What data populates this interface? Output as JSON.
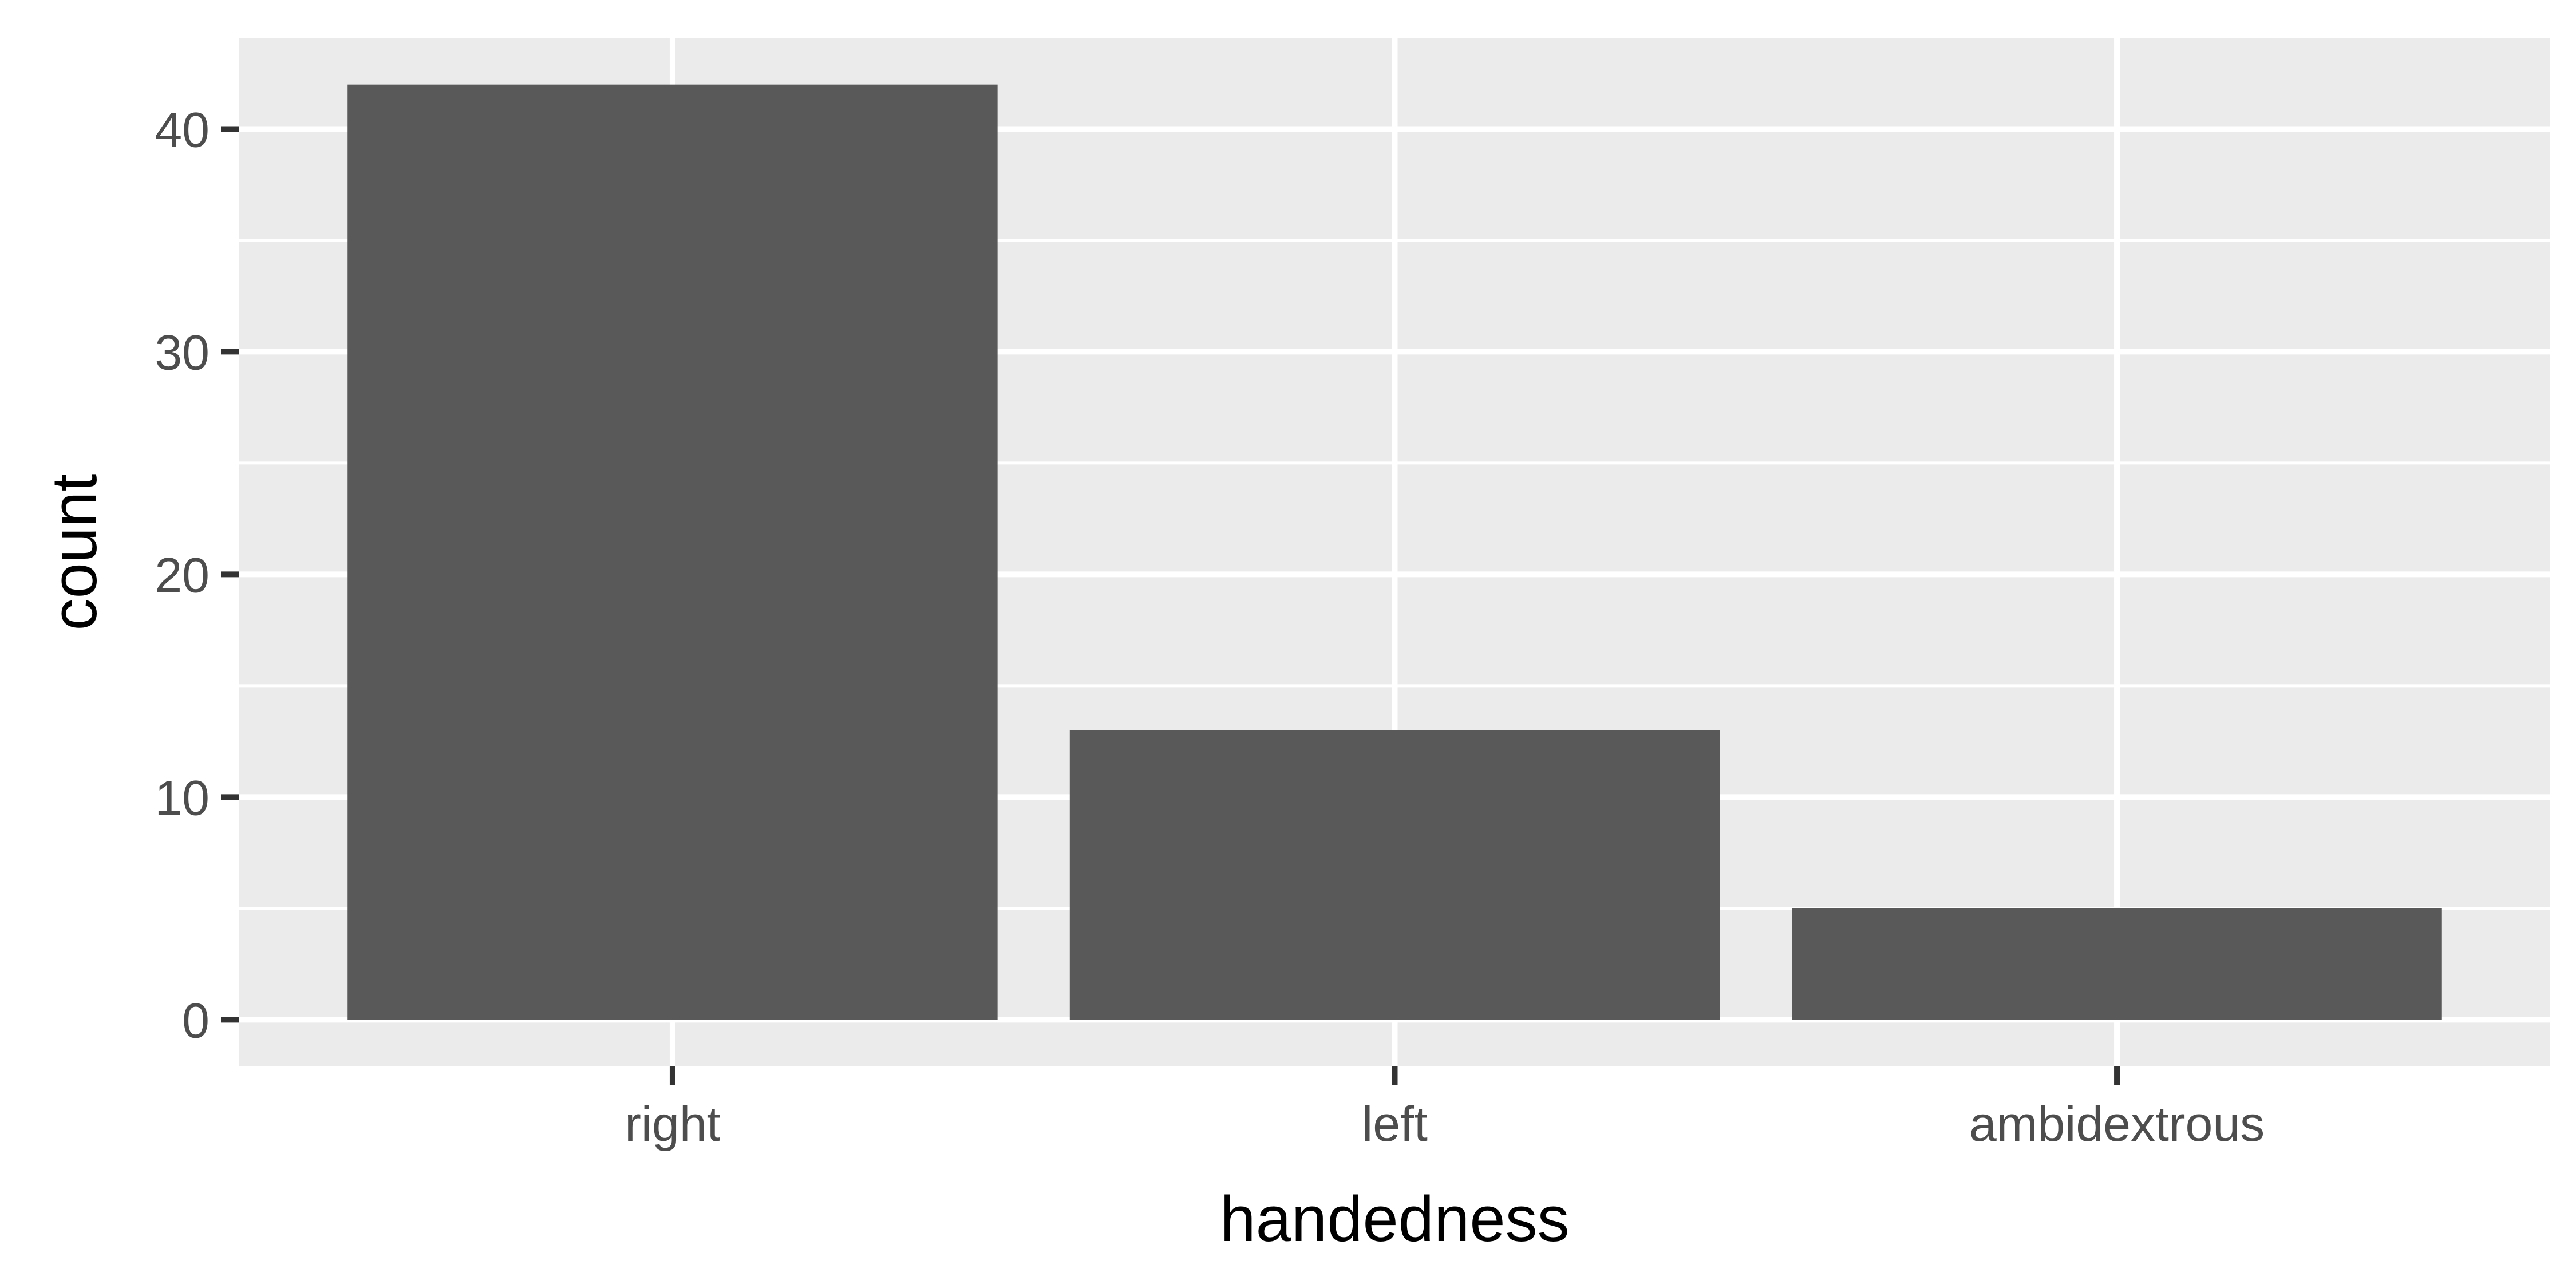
{
  "chart_data": {
    "type": "bar",
    "categories": [
      "right",
      "left",
      "ambidextrous"
    ],
    "values": [
      42,
      13,
      5
    ],
    "xlabel": "handedness",
    "ylabel": "count",
    "ylim": [
      -2.1,
      44.1
    ],
    "yticks": [
      0,
      10,
      20,
      30,
      40
    ],
    "yticks_minor": [
      5,
      15,
      25,
      35
    ],
    "grid": true,
    "legend": "none",
    "colors": {
      "panel": "#ebebeb",
      "grid": "#ffffff",
      "bar": "#595959",
      "tick": "#333333"
    }
  }
}
